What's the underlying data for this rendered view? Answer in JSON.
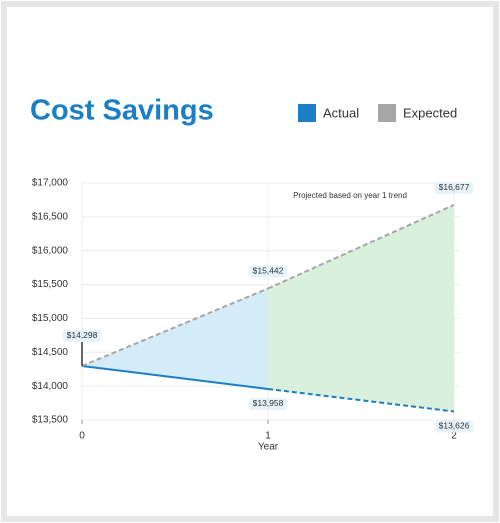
{
  "chart_data": {
    "type": "line",
    "title": "Cost Savings",
    "x_label": "Year",
    "x": [
      0,
      1,
      2
    ],
    "xlim": [
      0,
      2
    ],
    "xticks": [
      0,
      1,
      2
    ],
    "ylim": [
      13500,
      17000
    ],
    "yticks": [
      {
        "value": 13500,
        "label": "$13,500"
      },
      {
        "value": 14000,
        "label": "$14,000"
      },
      {
        "value": 14500,
        "label": "$14,500"
      },
      {
        "value": 15000,
        "label": "$15,000"
      },
      {
        "value": 15500,
        "label": "$15,500"
      },
      {
        "value": 16000,
        "label": "$16,000"
      },
      {
        "value": 16500,
        "label": "$16,500"
      },
      {
        "value": 17000,
        "label": "$17,000"
      }
    ],
    "grid": true,
    "annotation": "Projected based on year 1 trend",
    "projection_start": 1,
    "fill_colors": [
      "#d3ecf8",
      "#d9f0dc"
    ],
    "series": [
      {
        "name": "Actual",
        "color": "#1a7fc4",
        "values": [
          14298,
          13958,
          13626
        ],
        "value_labels": [
          "$14,298",
          "$13,958",
          "$13,626"
        ]
      },
      {
        "name": "Expected",
        "color": "#a6a6a6",
        "values": [
          14298,
          15442,
          16677
        ],
        "value_labels": [
          null,
          "$15,442",
          "$16,677"
        ]
      }
    ]
  }
}
